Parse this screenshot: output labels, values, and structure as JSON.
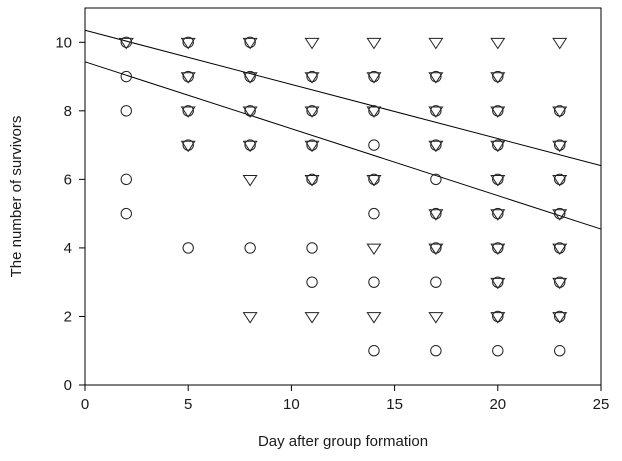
{
  "chart_data": {
    "type": "scatter",
    "title": "",
    "xlabel": "Day after group formation",
    "ylabel": "The number of survivors",
    "xlim": [
      0,
      25
    ],
    "ylim": [
      0,
      11
    ],
    "xticks": [
      0,
      5,
      10,
      15,
      20,
      25
    ],
    "yticks": [
      0,
      2,
      4,
      6,
      8,
      10
    ],
    "grid": false,
    "legend": "none",
    "series": [
      {
        "marker": "triangle-down",
        "points": [
          [
            2,
            10
          ],
          [
            5,
            10
          ],
          [
            5,
            9
          ],
          [
            5,
            8
          ],
          [
            5,
            7
          ],
          [
            8,
            10
          ],
          [
            8,
            9
          ],
          [
            8,
            8
          ],
          [
            8,
            7
          ],
          [
            8,
            6
          ],
          [
            8,
            2
          ],
          [
            11,
            10
          ],
          [
            11,
            9
          ],
          [
            11,
            8
          ],
          [
            11,
            7
          ],
          [
            11,
            6
          ],
          [
            11,
            2
          ],
          [
            14,
            10
          ],
          [
            14,
            9
          ],
          [
            14,
            8
          ],
          [
            14,
            6
          ],
          [
            14,
            4
          ],
          [
            14,
            2
          ],
          [
            17,
            10
          ],
          [
            17,
            9
          ],
          [
            17,
            8
          ],
          [
            17,
            7
          ],
          [
            17,
            5
          ],
          [
            17,
            4
          ],
          [
            17,
            2
          ],
          [
            20,
            10
          ],
          [
            20,
            9
          ],
          [
            20,
            8
          ],
          [
            20,
            7
          ],
          [
            20,
            6
          ],
          [
            20,
            5
          ],
          [
            20,
            4
          ],
          [
            20,
            3
          ],
          [
            20,
            2
          ],
          [
            23,
            10
          ],
          [
            23,
            8
          ],
          [
            23,
            7
          ],
          [
            23,
            6
          ],
          [
            23,
            5
          ],
          [
            23,
            4
          ],
          [
            23,
            3
          ],
          [
            23,
            2
          ]
        ],
        "fit": [
          [
            0,
            10.35
          ],
          [
            25,
            6.4
          ]
        ]
      },
      {
        "marker": "circle",
        "points": [
          [
            2,
            10
          ],
          [
            2,
            9
          ],
          [
            2,
            8
          ],
          [
            2,
            6
          ],
          [
            2,
            5
          ],
          [
            5,
            10
          ],
          [
            5,
            9
          ],
          [
            5,
            8
          ],
          [
            5,
            7
          ],
          [
            5,
            4
          ],
          [
            8,
            10
          ],
          [
            8,
            9
          ],
          [
            8,
            8
          ],
          [
            8,
            7
          ],
          [
            8,
            4
          ],
          [
            11,
            9
          ],
          [
            11,
            8
          ],
          [
            11,
            7
          ],
          [
            11,
            6
          ],
          [
            11,
            4
          ],
          [
            11,
            3
          ],
          [
            14,
            9
          ],
          [
            14,
            8
          ],
          [
            14,
            7
          ],
          [
            14,
            6
          ],
          [
            14,
            5
          ],
          [
            14,
            3
          ],
          [
            14,
            1
          ],
          [
            17,
            9
          ],
          [
            17,
            8
          ],
          [
            17,
            7
          ],
          [
            17,
            6
          ],
          [
            17,
            5
          ],
          [
            17,
            4
          ],
          [
            17,
            3
          ],
          [
            17,
            1
          ],
          [
            20,
            9
          ],
          [
            20,
            8
          ],
          [
            20,
            7
          ],
          [
            20,
            6
          ],
          [
            20,
            5
          ],
          [
            20,
            4
          ],
          [
            20,
            3
          ],
          [
            20,
            2
          ],
          [
            20,
            1
          ],
          [
            23,
            8
          ],
          [
            23,
            7
          ],
          [
            23,
            6
          ],
          [
            23,
            5
          ],
          [
            23,
            4
          ],
          [
            23,
            3
          ],
          [
            23,
            2
          ],
          [
            23,
            1
          ]
        ],
        "fit": [
          [
            0,
            9.43
          ],
          [
            25,
            4.55
          ]
        ]
      }
    ]
  }
}
